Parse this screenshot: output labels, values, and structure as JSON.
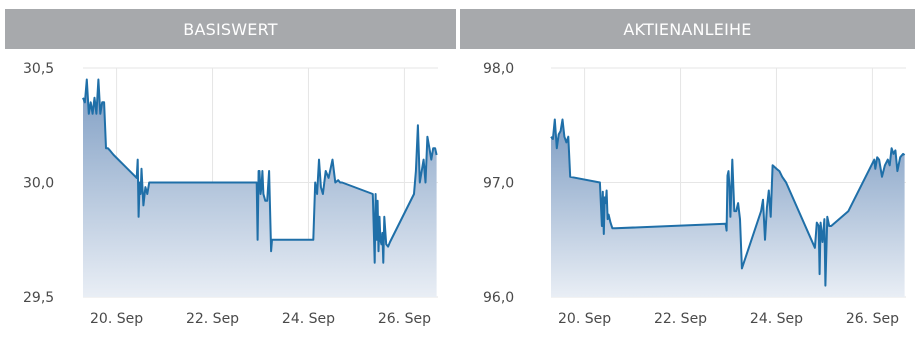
{
  "headers": {
    "left": "BASISWERT",
    "right": "AKTIENANLEIHE"
  },
  "colors": {
    "line": "#1f6fa8",
    "fill_top": "#7e9dc3",
    "fill_bottom": "#e9eef5",
    "grid": "#e6e6e6",
    "header_bg": "#a7a9ac"
  },
  "chart_data": [
    {
      "type": "area",
      "title": "BASISWERT",
      "xlabel": "",
      "ylabel": "",
      "x_ticks": [
        "20. Sep",
        "22. Sep",
        "24. Sep",
        "26. Sep"
      ],
      "x_tick_days": [
        20,
        22,
        24,
        26
      ],
      "y_ticks": [
        "29,5",
        "30,0",
        "30,5"
      ],
      "y_tick_values": [
        29.5,
        30.0,
        30.5
      ],
      "xlim": [
        19.3,
        26.7
      ],
      "ylim": [
        29.5,
        30.5
      ],
      "grid": true,
      "series": [
        {
          "x": [
            19.3,
            19.34,
            19.38,
            19.42,
            19.46,
            19.5,
            19.54,
            19.58,
            19.62,
            19.66,
            19.7,
            19.74,
            19.78,
            19.82,
            19.86,
            19.9,
            19.94,
            20.42,
            20.44,
            20.46,
            20.48,
            20.5,
            20.52,
            20.56,
            20.6,
            20.64,
            20.68,
            20.72,
            22.92,
            22.94,
            22.96,
            22.98,
            23.0,
            23.02,
            23.04,
            23.06,
            23.1,
            23.14,
            23.18,
            23.22,
            23.24,
            23.27,
            23.3,
            24.1,
            24.14,
            24.18,
            24.22,
            24.26,
            24.3,
            24.36,
            24.42,
            24.5,
            24.56,
            24.62,
            24.66,
            24.7,
            25.34,
            25.38,
            25.4,
            25.42,
            25.44,
            25.46,
            25.48,
            25.5,
            25.52,
            25.54,
            25.56,
            25.58,
            25.62,
            25.66,
            25.7,
            26.2,
            26.24,
            26.28,
            26.32,
            26.36,
            26.4,
            26.44,
            26.48,
            26.52,
            26.56,
            26.6,
            26.64,
            26.67
          ],
          "y": [
            30.37,
            30.35,
            30.45,
            30.3,
            30.35,
            30.3,
            30.37,
            30.3,
            30.45,
            30.3,
            30.35,
            30.35,
            30.15,
            30.15,
            30.14,
            30.13,
            30.12,
            30.02,
            30.1,
            29.85,
            30.0,
            29.95,
            30.06,
            29.9,
            29.98,
            29.95,
            30.0,
            30.0,
            30.0,
            29.75,
            30.05,
            30.05,
            29.95,
            29.98,
            30.05,
            29.95,
            29.92,
            29.92,
            30.05,
            29.7,
            29.75,
            29.75,
            29.75,
            29.75,
            30.0,
            29.95,
            30.1,
            29.98,
            29.95,
            30.05,
            30.02,
            30.1,
            30.0,
            30.01,
            30.0,
            30.0,
            29.95,
            29.65,
            29.95,
            29.75,
            29.92,
            29.7,
            29.85,
            29.75,
            29.73,
            29.78,
            29.65,
            29.85,
            29.73,
            29.72,
            29.74,
            29.95,
            30.05,
            30.25,
            30.0,
            30.05,
            30.1,
            30.0,
            30.2,
            30.15,
            30.1,
            30.15,
            30.15,
            30.12
          ]
        }
      ]
    },
    {
      "type": "area",
      "title": "AKTIENANLEIHE",
      "xlabel": "",
      "ylabel": "",
      "x_ticks": [
        "20. Sep",
        "22. Sep",
        "24. Sep",
        "26. Sep"
      ],
      "x_tick_days": [
        20,
        22,
        24,
        26
      ],
      "y_ticks": [
        "96,0",
        "97,0",
        "98,0"
      ],
      "y_tick_values": [
        96.0,
        97.0,
        98.0
      ],
      "xlim": [
        19.3,
        26.7
      ],
      "ylim": [
        96.0,
        98.0
      ],
      "grid": true,
      "series": [
        {
          "x": [
            19.3,
            19.34,
            19.38,
            19.42,
            19.46,
            19.5,
            19.54,
            19.58,
            19.62,
            19.66,
            19.7,
            20.32,
            20.36,
            20.38,
            20.4,
            20.42,
            20.44,
            20.46,
            20.48,
            20.5,
            20.54,
            20.58,
            20.64,
            22.94,
            22.96,
            22.98,
            23.0,
            23.02,
            23.04,
            23.08,
            23.12,
            23.16,
            23.2,
            23.24,
            23.28,
            23.68,
            23.72,
            23.76,
            23.8,
            23.84,
            23.88,
            23.92,
            24.0,
            24.06,
            24.12,
            24.2,
            24.8,
            24.84,
            24.88,
            24.9,
            24.92,
            24.96,
            25.0,
            25.02,
            25.06,
            25.1,
            25.14,
            25.5,
            26.04,
            26.06,
            26.1,
            26.14,
            26.2,
            26.26,
            26.32,
            26.36,
            26.4,
            26.44,
            26.48,
            26.52,
            26.58,
            26.64,
            26.67
          ],
          "y": [
            97.4,
            97.38,
            97.55,
            97.3,
            97.42,
            97.45,
            97.55,
            97.4,
            97.35,
            97.4,
            97.05,
            97.0,
            96.62,
            96.92,
            96.55,
            96.87,
            96.82,
            96.93,
            96.68,
            96.72,
            96.65,
            96.6,
            96.6,
            96.64,
            96.58,
            97.06,
            97.1,
            96.95,
            96.7,
            97.2,
            96.75,
            96.75,
            96.82,
            96.68,
            96.25,
            96.75,
            96.85,
            96.5,
            96.78,
            96.93,
            96.7,
            97.15,
            97.12,
            97.1,
            97.05,
            97.0,
            96.43,
            96.65,
            96.62,
            96.2,
            96.65,
            96.48,
            96.68,
            96.1,
            96.7,
            96.62,
            96.62,
            96.75,
            97.2,
            97.12,
            97.22,
            97.2,
            97.05,
            97.15,
            97.2,
            97.15,
            97.3,
            97.25,
            97.28,
            97.1,
            97.22,
            97.25,
            97.24
          ]
        }
      ]
    }
  ]
}
